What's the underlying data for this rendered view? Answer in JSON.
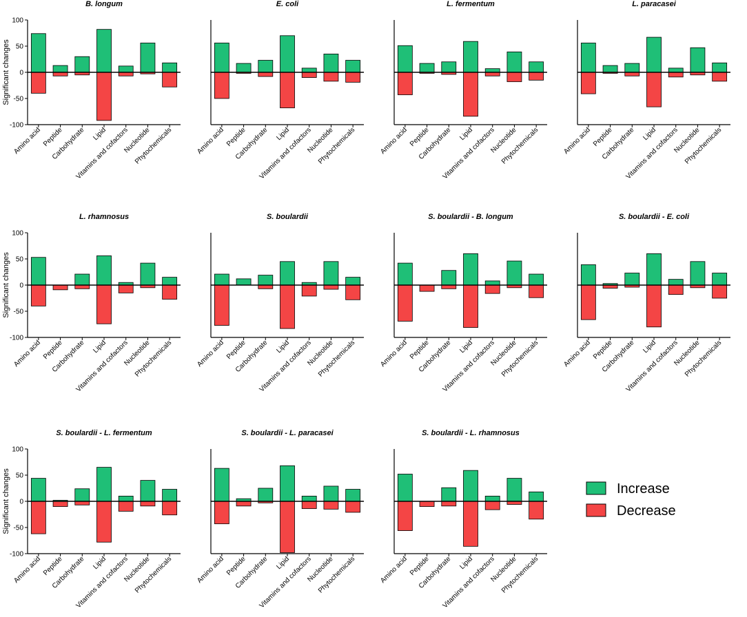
{
  "legend": {
    "increase_label": "Increase",
    "decrease_label": "Decrease",
    "increase_color": "#1fbf77",
    "decrease_color": "#f44545"
  },
  "chart_data": [
    {
      "type": "bar",
      "title": "B. longum",
      "ylabel": "Significant changes",
      "ylim": [
        -100,
        100
      ],
      "yticks": [
        100,
        50,
        0,
        -50,
        -100
      ],
      "categories": [
        "Amino acid",
        "Peptide",
        "Carbohydrate",
        "Lipid",
        "Vitamins and cofactors",
        "Nucleotide",
        "Phytochemicals"
      ],
      "series": [
        {
          "name": "Increase",
          "values": [
            74,
            13,
            30,
            82,
            12,
            56,
            18
          ]
        },
        {
          "name": "Decrease",
          "values": [
            -40,
            -7,
            -5,
            -92,
            -7,
            -3,
            -28
          ]
        }
      ]
    },
    {
      "type": "bar",
      "title": "E. coli",
      "ylabel": "",
      "ylim": [
        -100,
        100
      ],
      "yticks": [],
      "categories": [
        "Amino acid",
        "Peptide",
        "Carbohydrate",
        "Lipid",
        "Vitamins and cofactors",
        "Nucleotide",
        "Phytochemicals"
      ],
      "series": [
        {
          "name": "Increase",
          "values": [
            56,
            17,
            23,
            70,
            8,
            35,
            23
          ]
        },
        {
          "name": "Decrease",
          "values": [
            -50,
            -2,
            -8,
            -68,
            -10,
            -17,
            -19
          ]
        }
      ]
    },
    {
      "type": "bar",
      "title": "L. fermentum",
      "ylabel": "",
      "ylim": [
        -100,
        100
      ],
      "yticks": [],
      "categories": [
        "Amino acid",
        "Peptide",
        "Carbohydrate",
        "Lipid",
        "Vitamins and cofactors",
        "Nucleotide",
        "Phytochemicals"
      ],
      "series": [
        {
          "name": "Increase",
          "values": [
            51,
            17,
            20,
            59,
            7,
            39,
            20
          ]
        },
        {
          "name": "Decrease",
          "values": [
            -43,
            -2,
            -4,
            -84,
            -7,
            -18,
            -15
          ]
        }
      ]
    },
    {
      "type": "bar",
      "title": "L. paracasei",
      "ylabel": "",
      "ylim": [
        -100,
        100
      ],
      "yticks": [],
      "categories": [
        "Amino acid",
        "Peptide",
        "Carbohydrate",
        "Lipid",
        "Vitamins and cofactors",
        "Nucleotide",
        "Phytochemicals"
      ],
      "series": [
        {
          "name": "Increase",
          "values": [
            56,
            13,
            17,
            67,
            8,
            47,
            18
          ]
        },
        {
          "name": "Decrease",
          "values": [
            -41,
            -2,
            -7,
            -66,
            -9,
            -5,
            -17
          ]
        }
      ]
    },
    {
      "type": "bar",
      "title": "L. rhamnosus",
      "ylabel": "Significant changes",
      "ylim": [
        -100,
        100
      ],
      "yticks": [
        100,
        50,
        0,
        -50,
        -100
      ],
      "categories": [
        "Amino acid",
        "Peptide",
        "Carbohydrate",
        "Lipid",
        "Vitamins and cofactors",
        "Nucleotide",
        "Phytochemicals"
      ],
      "series": [
        {
          "name": "Increase",
          "values": [
            53,
            0,
            21,
            56,
            5,
            42,
            15
          ]
        },
        {
          "name": "Decrease",
          "values": [
            -40,
            -9,
            -7,
            -74,
            -15,
            -5,
            -27
          ]
        }
      ]
    },
    {
      "type": "bar",
      "title": "S. boulardii",
      "ylabel": "",
      "ylim": [
        -100,
        100
      ],
      "yticks": [],
      "categories": [
        "Amino acid",
        "Peptide",
        "Carbohydrate",
        "Lipid",
        "Vitamins and cofactors",
        "Nucleotide",
        "Phytochemicals"
      ],
      "series": [
        {
          "name": "Increase",
          "values": [
            21,
            12,
            19,
            45,
            5,
            45,
            15
          ]
        },
        {
          "name": "Decrease",
          "values": [
            -77,
            0,
            -7,
            -83,
            -21,
            -8,
            -28
          ]
        }
      ]
    },
    {
      "type": "bar",
      "title": "S. boulardii - B. longum",
      "ylabel": "",
      "ylim": [
        -100,
        100
      ],
      "yticks": [],
      "categories": [
        "Amino acid",
        "Peptide",
        "Carbohydrate",
        "Lipid",
        "Vitamins and cofactors",
        "Nucleotide",
        "Phytochemicals"
      ],
      "series": [
        {
          "name": "Increase",
          "values": [
            42,
            0,
            28,
            60,
            8,
            46,
            21
          ]
        },
        {
          "name": "Decrease",
          "values": [
            -69,
            -12,
            -7,
            -81,
            -16,
            -5,
            -24
          ]
        }
      ]
    },
    {
      "type": "bar",
      "title": "S. boulardii - E. coli",
      "ylabel": "",
      "ylim": [
        -100,
        100
      ],
      "yticks": [],
      "categories": [
        "Amino acid",
        "Peptide",
        "Carbohydrate",
        "Lipid",
        "Vitamins and cofactors",
        "Nucleotide",
        "Phytochemicals"
      ],
      "series": [
        {
          "name": "Increase",
          "values": [
            39,
            3,
            23,
            60,
            11,
            45,
            23
          ]
        },
        {
          "name": "Decrease",
          "values": [
            -66,
            -6,
            -4,
            -80,
            -18,
            -5,
            -25
          ]
        }
      ]
    },
    {
      "type": "bar",
      "title": "S. boulardii - L.  fermentum",
      "ylabel": "Significant changes",
      "ylim": [
        -100,
        100
      ],
      "yticks": [
        100,
        50,
        0,
        -50,
        -100
      ],
      "categories": [
        "Amino acid",
        "Peptide",
        "Carbohydrate",
        "Lipid",
        "Vitamins and cofactors",
        "Nucleotide",
        "Phytochemicals"
      ],
      "series": [
        {
          "name": "Increase",
          "values": [
            44,
            2,
            24,
            65,
            10,
            40,
            23
          ]
        },
        {
          "name": "Decrease",
          "values": [
            -62,
            -10,
            -7,
            -78,
            -19,
            -9,
            -26
          ]
        }
      ]
    },
    {
      "type": "bar",
      "title": "S. boulardii - L.  paracasei",
      "ylabel": "",
      "ylim": [
        -100,
        100
      ],
      "yticks": [],
      "categories": [
        "Amino acid",
        "Peptide",
        "Carbohydrate",
        "Lipid",
        "Vitamins and cofactors",
        "Nucleotide",
        "Phytochemicals"
      ],
      "series": [
        {
          "name": "Increase",
          "values": [
            63,
            5,
            25,
            68,
            10,
            29,
            23
          ]
        },
        {
          "name": "Decrease",
          "values": [
            -43,
            -9,
            -3,
            -98,
            -14,
            -15,
            -21
          ]
        }
      ]
    },
    {
      "type": "bar",
      "title": "S. boulardii - L. rhamnosus",
      "ylabel": "",
      "ylim": [
        -100,
        100
      ],
      "yticks": [],
      "categories": [
        "Amino acid",
        "Peptide",
        "Carbohydrate",
        "Lipid",
        "Vitamins and cofactors",
        "Nucleotide",
        "Phytochemicals"
      ],
      "series": [
        {
          "name": "Increase",
          "values": [
            52,
            0,
            26,
            59,
            10,
            44,
            18
          ]
        },
        {
          "name": "Decrease",
          "values": [
            -56,
            -10,
            -9,
            -86,
            -16,
            -6,
            -34
          ]
        }
      ]
    }
  ]
}
